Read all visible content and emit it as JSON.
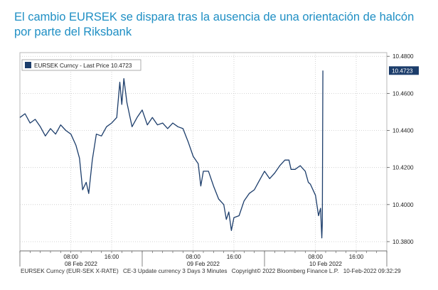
{
  "headline": "El cambio EURSEK se dispara tras la ausencia de una orientación de halcón por parte del Riksbank",
  "chart_data": {
    "type": "line",
    "legend": {
      "label": "EURSEK Curncy - Last Price 10.4723",
      "placement": "top-left",
      "color": "#1c3d6b"
    },
    "series": [
      {
        "name": "EURSEK Curncy - Last Price",
        "color": "#1c3d6b",
        "last_price_label": "10.4723",
        "points": [
          [
            0.0,
            10.447
          ],
          [
            1.0,
            10.449
          ],
          [
            2.0,
            10.444
          ],
          [
            3.0,
            10.446
          ],
          [
            4.0,
            10.442
          ],
          [
            5.0,
            10.437
          ],
          [
            6.0,
            10.441
          ],
          [
            7.0,
            10.438
          ],
          [
            8.0,
            10.443
          ],
          [
            9.0,
            10.44
          ],
          [
            10.0,
            10.438
          ],
          [
            11.0,
            10.432
          ],
          [
            11.7,
            10.425
          ],
          [
            12.3,
            10.408
          ],
          [
            13.0,
            10.412
          ],
          [
            13.5,
            10.406
          ],
          [
            14.2,
            10.424
          ],
          [
            15.0,
            10.438
          ],
          [
            16.0,
            10.437
          ],
          [
            17.0,
            10.442
          ],
          [
            18.0,
            10.444
          ],
          [
            19.0,
            10.447
          ],
          [
            19.6,
            10.466
          ],
          [
            20.0,
            10.454
          ],
          [
            20.4,
            10.468
          ],
          [
            21.0,
            10.455
          ],
          [
            22.0,
            10.442
          ],
          [
            23.0,
            10.447
          ],
          [
            24.0,
            10.451
          ],
          [
            25.0,
            10.443
          ],
          [
            26.0,
            10.447
          ],
          [
            27.0,
            10.443
          ],
          [
            28.0,
            10.444
          ],
          [
            29.0,
            10.441
          ],
          [
            30.0,
            10.444
          ],
          [
            31.0,
            10.442
          ],
          [
            32.0,
            10.441
          ],
          [
            33.0,
            10.434
          ],
          [
            34.0,
            10.426
          ],
          [
            35.0,
            10.422
          ],
          [
            35.5,
            10.41
          ],
          [
            36.0,
            10.418
          ],
          [
            37.0,
            10.418
          ],
          [
            38.0,
            10.41
          ],
          [
            39.0,
            10.403
          ],
          [
            40.0,
            10.4
          ],
          [
            40.5,
            10.392
          ],
          [
            41.0,
            10.396
          ],
          [
            41.5,
            10.386
          ],
          [
            42.0,
            10.393
          ],
          [
            43.0,
            10.394
          ],
          [
            44.0,
            10.402
          ],
          [
            45.0,
            10.406
          ],
          [
            46.0,
            10.408
          ],
          [
            47.0,
            10.413
          ],
          [
            48.0,
            10.418
          ],
          [
            49.0,
            10.414
          ],
          [
            50.0,
            10.417
          ],
          [
            51.0,
            10.421
          ],
          [
            52.0,
            10.424
          ],
          [
            52.8,
            10.424
          ],
          [
            53.2,
            10.419
          ],
          [
            54.0,
            10.419
          ],
          [
            55.0,
            10.421
          ],
          [
            56.0,
            10.418
          ],
          [
            56.6,
            10.412
          ],
          [
            57.0,
            10.411
          ],
          [
            58.0,
            10.405
          ],
          [
            58.6,
            10.394
          ],
          [
            59.0,
            10.398
          ],
          [
            59.25,
            10.382
          ],
          [
            59.35,
            10.39
          ],
          [
            59.45,
            10.4723
          ]
        ]
      }
    ],
    "x_range": [
      0,
      72
    ],
    "x_tick_labels": [
      {
        "t": 10.0,
        "label": "08:00"
      },
      {
        "t": 18.0,
        "label": "16:00"
      },
      {
        "t": 34.0,
        "label": "08:00"
      },
      {
        "t": 42.0,
        "label": "16:00"
      },
      {
        "t": 58.0,
        "label": "08:00"
      },
      {
        "t": 66.0,
        "label": "16:00"
      }
    ],
    "x_day_labels": [
      {
        "t": 12.0,
        "label": "08 Feb 2022"
      },
      {
        "t": 36.0,
        "label": "09 Feb 2022"
      },
      {
        "t": 60.0,
        "label": "10 Feb 2022"
      }
    ],
    "x_day_boundaries": [
      0,
      24,
      48,
      72
    ],
    "y_range": [
      10.375,
      10.482
    ],
    "y_ticks": [
      {
        "v": 10.48,
        "label": "10.4800"
      },
      {
        "v": 10.46,
        "label": "10.4600"
      },
      {
        "v": 10.44,
        "label": "10.4400"
      },
      {
        "v": 10.42,
        "label": "10.4200"
      },
      {
        "v": 10.4,
        "label": "10.4000"
      },
      {
        "v": 10.38,
        "label": "10.3800"
      }
    ],
    "grid": true,
    "y_axis_position": "right"
  },
  "footer": {
    "instrument": "EURSEK Curncy (EUR-SEK X-RATE)",
    "settings": "CE-3 Update currency 3 Days 3 Minutes",
    "copyright": "Copyright© 2022 Bloomberg Finance L.P.",
    "timestamp": "10-Feb-2022 09:32:29"
  }
}
